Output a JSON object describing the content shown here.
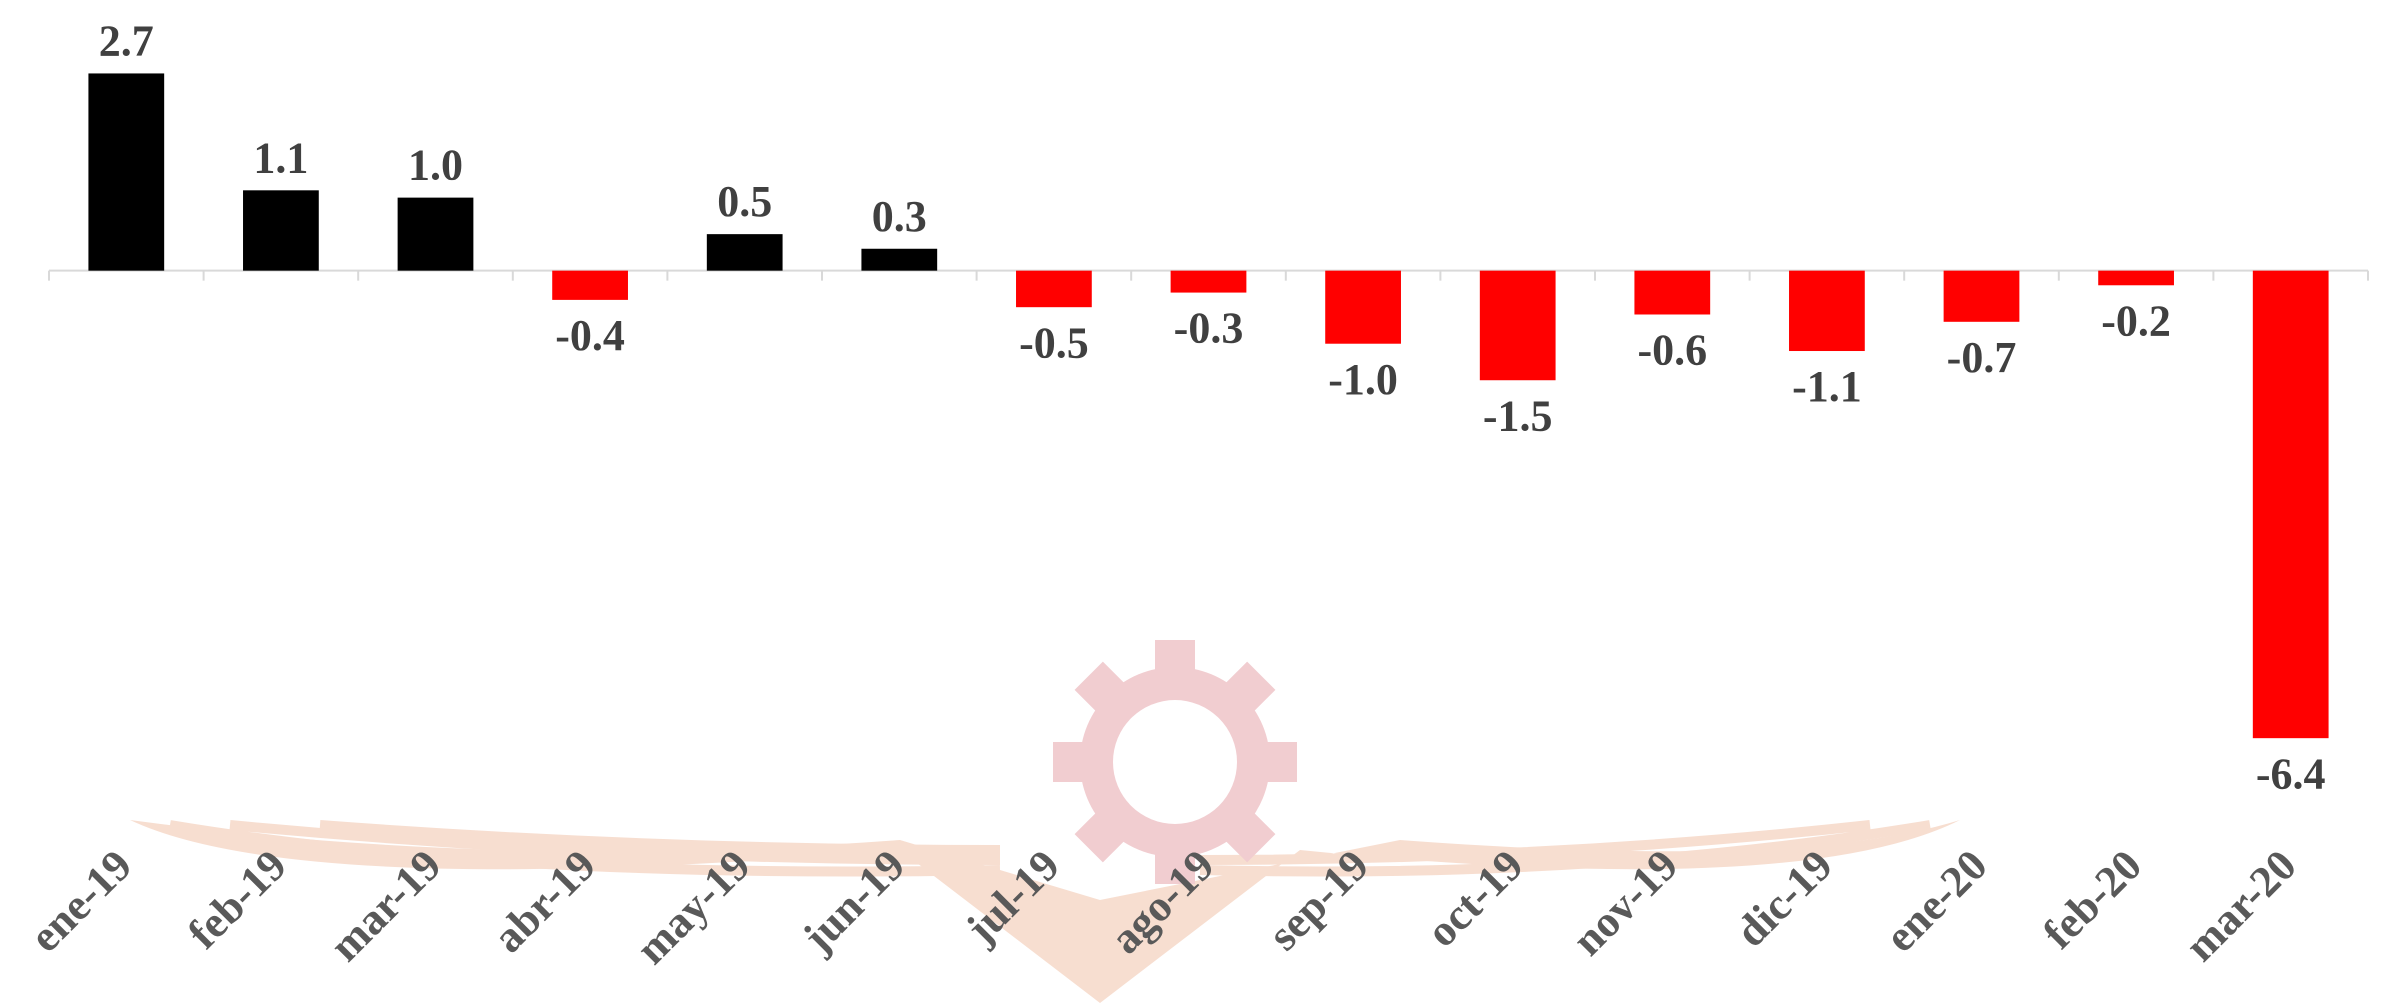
{
  "chart_data": {
    "type": "bar",
    "categories": [
      "ene-19",
      "feb-19",
      "mar-19",
      "abr-19",
      "may-19",
      "jun-19",
      "jul-19",
      "ago-19",
      "sep-19",
      "oct-19",
      "nov-19",
      "dic-19",
      "ene-20",
      "feb-20",
      "mar-20"
    ],
    "values": [
      2.7,
      1.1,
      1.0,
      -0.4,
      0.5,
      0.3,
      -0.5,
      -0.3,
      -1.0,
      -1.5,
      -0.6,
      -1.1,
      -0.7,
      -0.2,
      -6.4
    ],
    "value_labels": [
      "2.7",
      "1.1",
      "1.0",
      "-0.4",
      "0.5",
      "0.3",
      "-0.5",
      "-0.3",
      "-1.0",
      "-1.5",
      "-0.6",
      "-1.1",
      "-0.7",
      "-0.2",
      "-6.4"
    ],
    "positive_color": "#000000",
    "negative_color": "#ff0000",
    "ylim": [
      -7,
      3.5
    ]
  }
}
